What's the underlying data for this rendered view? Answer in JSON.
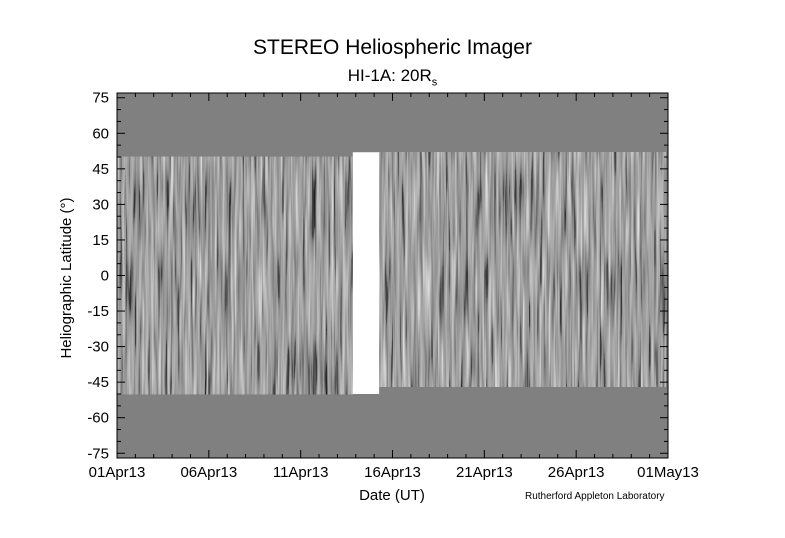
{
  "chart_data": {
    "type": "heatmap",
    "title": "STEREO Heliospheric Imager",
    "subtitle_main": "HI-1A: 20R",
    "subtitle_sub": "s",
    "xlabel": "Date (UT)",
    "ylabel": "Heliographic Latitude (°)",
    "x_ticks": [
      "01Apr13",
      "06Apr13",
      "11Apr13",
      "16Apr13",
      "21Apr13",
      "26Apr13",
      "01May13"
    ],
    "x_range": [
      "01Apr13",
      "01May13"
    ],
    "y_ticks": [
      75,
      60,
      45,
      30,
      15,
      0,
      -15,
      -30,
      -45,
      -60,
      -75
    ],
    "ylim": [
      -77,
      77
    ],
    "colormap": "grayscale",
    "background_color": "#808080",
    "data_coverage": [
      {
        "start": "01Apr13",
        "end": "14Apr13",
        "lat_min": -50,
        "lat_max": 50
      },
      {
        "start": "15Apr13",
        "end": "01May13",
        "lat_min": -47,
        "lat_max": 52
      }
    ],
    "gap": {
      "start": "14Apr13",
      "end": "15Apr13"
    },
    "credit": "Rutherford Appleton Laboratory"
  }
}
